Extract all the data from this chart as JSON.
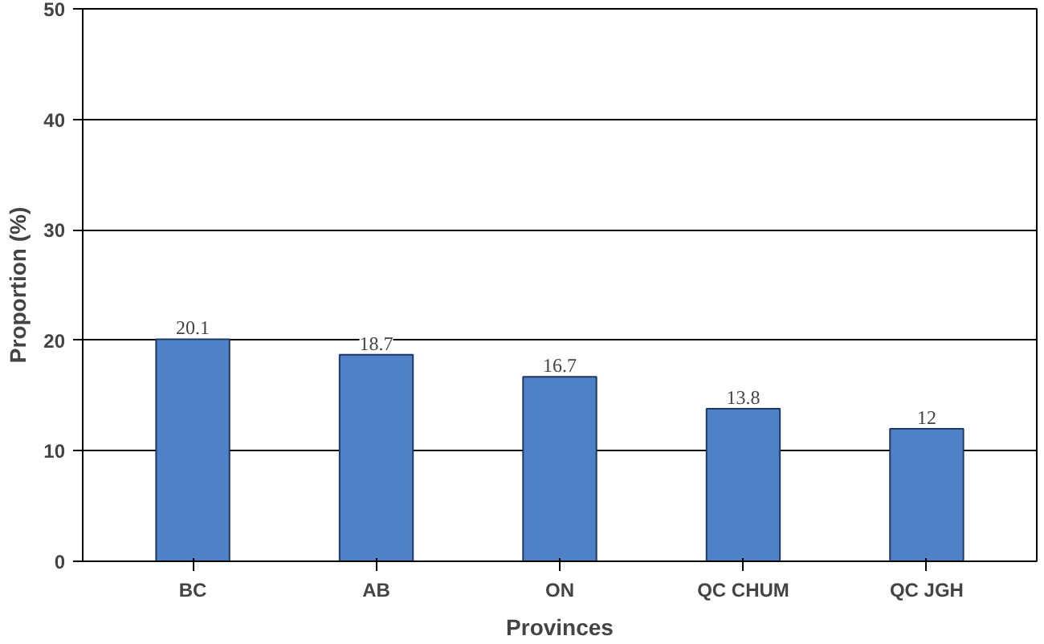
{
  "chart_data": {
    "type": "bar",
    "categories": [
      "BC",
      "AB",
      "ON",
      "QC CHUM",
      "QC JGH"
    ],
    "values": [
      20.1,
      18.7,
      16.7,
      13.8,
      12
    ],
    "color": "#4f81c7",
    "xlabel": "Provinces",
    "ylabel": "Proportion (%)",
    "ylim": [
      0,
      50
    ],
    "yticks": [
      0,
      10,
      20,
      30,
      40,
      50
    ],
    "grid": "y",
    "data_labels": true
  }
}
